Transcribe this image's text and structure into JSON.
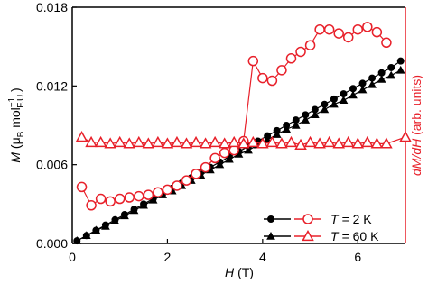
{
  "chart_data": {
    "type": "line",
    "x_label_parts": [
      "H",
      "(T)"
    ],
    "y_label_parts": [
      "M",
      "(μ",
      "B",
      "mol",
      "−1",
      "F.U.",
      ")"
    ],
    "y2_label_parts": [
      "dM/dH",
      "(arb. units)"
    ],
    "xlim": [
      0,
      7
    ],
    "xticks": [
      0,
      2,
      4,
      6
    ],
    "ylim": [
      0,
      0.018
    ],
    "yticks": [
      {
        "value": 0,
        "label": "0.000"
      },
      {
        "value": 0.006,
        "label": "0.006"
      },
      {
        "value": 0.012,
        "label": "0.012"
      },
      {
        "value": 0.018,
        "label": "0.018"
      }
    ],
    "legend_position": "lower right",
    "legend": [
      {
        "var": "T",
        "text": "= 2 K"
      },
      {
        "var": "T",
        "text": "= 60 K"
      }
    ],
    "series": [
      {
        "marker": "circle",
        "color": "#000000",
        "filled": true,
        "legend": 0,
        "x": [
          0.1,
          0.3,
          0.5,
          0.7,
          0.9,
          1.1,
          1.3,
          1.5,
          1.7,
          1.9,
          2.1,
          2.3,
          2.5,
          2.7,
          2.9,
          3.1,
          3.3,
          3.5,
          3.7,
          3.9,
          4.1,
          4.3,
          4.5,
          4.7,
          4.9,
          5.1,
          5.3,
          5.5,
          5.7,
          5.9,
          6.1,
          6.3,
          6.5,
          6.7,
          6.9
        ],
        "values": [
          0.0002,
          0.0006,
          0.001,
          0.0014,
          0.0018,
          0.0022,
          0.0026,
          0.003,
          0.0034,
          0.0038,
          0.0042,
          0.0046,
          0.005,
          0.0054,
          0.0058,
          0.0062,
          0.0066,
          0.007,
          0.0074,
          0.0078,
          0.0082,
          0.0086,
          0.009,
          0.0094,
          0.0098,
          0.0102,
          0.0106,
          0.011,
          0.0114,
          0.0118,
          0.0122,
          0.0126,
          0.013,
          0.0134,
          0.0139
        ]
      },
      {
        "marker": "triangle",
        "color": "#000000",
        "filled": true,
        "legend": 1,
        "x": [
          0.1,
          0.3,
          0.5,
          0.7,
          0.9,
          1.1,
          1.3,
          1.5,
          1.7,
          1.9,
          2.1,
          2.3,
          2.5,
          2.7,
          2.9,
          3.1,
          3.3,
          3.5,
          3.7,
          3.9,
          4.1,
          4.3,
          4.5,
          4.7,
          4.9,
          5.1,
          5.3,
          5.5,
          5.7,
          5.9,
          6.1,
          6.3,
          6.5,
          6.7,
          6.9
        ],
        "values": [
          0.0002,
          0.0006,
          0.001,
          0.0013,
          0.0017,
          0.0021,
          0.0025,
          0.0029,
          0.0033,
          0.0037,
          0.004,
          0.0044,
          0.0048,
          0.0052,
          0.0056,
          0.006,
          0.0064,
          0.0068,
          0.0071,
          0.0075,
          0.0079,
          0.0083,
          0.0087,
          0.009,
          0.0094,
          0.0098,
          0.0102,
          0.0106,
          0.0109,
          0.0113,
          0.0117,
          0.0121,
          0.0125,
          0.0128,
          0.0132
        ]
      },
      {
        "marker": "circle",
        "color": "#e8202a",
        "filled": false,
        "legend": 0,
        "x": [
          0.2,
          0.4,
          0.6,
          0.8,
          1.0,
          1.2,
          1.4,
          1.6,
          1.8,
          2.0,
          2.2,
          2.4,
          2.6,
          2.8,
          3.0,
          3.2,
          3.4,
          3.6,
          3.8,
          4.0,
          4.2,
          4.4,
          4.6,
          4.8,
          5.0,
          5.2,
          5.4,
          5.6,
          5.8,
          6.0,
          6.2,
          6.4,
          6.6
        ],
        "values": [
          0.0043,
          0.0029,
          0.0034,
          0.0032,
          0.0034,
          0.0035,
          0.0036,
          0.0037,
          0.0039,
          0.0041,
          0.0044,
          0.0048,
          0.0053,
          0.0058,
          0.0065,
          0.0069,
          0.0071,
          0.0078,
          0.0139,
          0.0126,
          0.0124,
          0.0132,
          0.0141,
          0.0146,
          0.0151,
          0.0163,
          0.0163,
          0.016,
          0.0157,
          0.0163,
          0.0165,
          0.0161,
          0.0153
        ]
      },
      {
        "marker": "triangle",
        "color": "#e8202a",
        "filled": false,
        "legend": 1,
        "x": [
          0.2,
          0.4,
          0.6,
          0.8,
          1.0,
          1.2,
          1.4,
          1.6,
          1.8,
          2.0,
          2.2,
          2.4,
          2.6,
          2.8,
          3.0,
          3.2,
          3.4,
          3.6,
          3.8,
          4.0,
          4.2,
          4.4,
          4.6,
          4.8,
          5.0,
          5.2,
          5.4,
          5.6,
          5.8,
          6.0,
          6.2,
          6.4,
          6.6,
          7.0
        ],
        "values": [
          0.0081,
          0.0077,
          0.0077,
          0.0076,
          0.0077,
          0.0076,
          0.0077,
          0.0076,
          0.0077,
          0.0076,
          0.0077,
          0.0076,
          0.0077,
          0.0076,
          0.0077,
          0.0076,
          0.0077,
          0.0076,
          0.0077,
          0.0076,
          0.0077,
          0.0076,
          0.0077,
          0.0075,
          0.0077,
          0.0076,
          0.0077,
          0.0076,
          0.0077,
          0.0076,
          0.0077,
          0.0076,
          0.0076,
          0.0081
        ]
      }
    ]
  }
}
